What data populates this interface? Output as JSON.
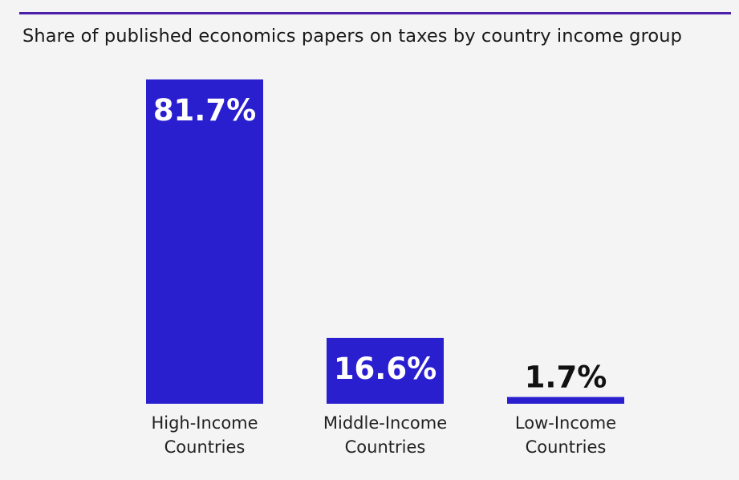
{
  "colors": {
    "bar": "#2a1fcf",
    "rule": "#4b1fa8",
    "background": "#f4f4f4",
    "label_on_bar": "#ffffff",
    "label_above_bar": "#111111"
  },
  "chart_data": {
    "type": "bar",
    "title": "",
    "subtitle": "Share of published economics papers on taxes by country income group",
    "xlabel": "",
    "ylabel": "",
    "ylim": [
      0,
      100
    ],
    "grid": false,
    "legend": "none",
    "categories": [
      [
        "High-Income",
        "Countries"
      ],
      [
        "Middle-Income",
        "Countries"
      ],
      [
        "Low-Income",
        "Countries"
      ]
    ],
    "values": [
      81.7,
      16.6,
      1.7
    ],
    "data_labels": [
      "81.7%",
      "16.6%",
      "1.7%"
    ]
  }
}
